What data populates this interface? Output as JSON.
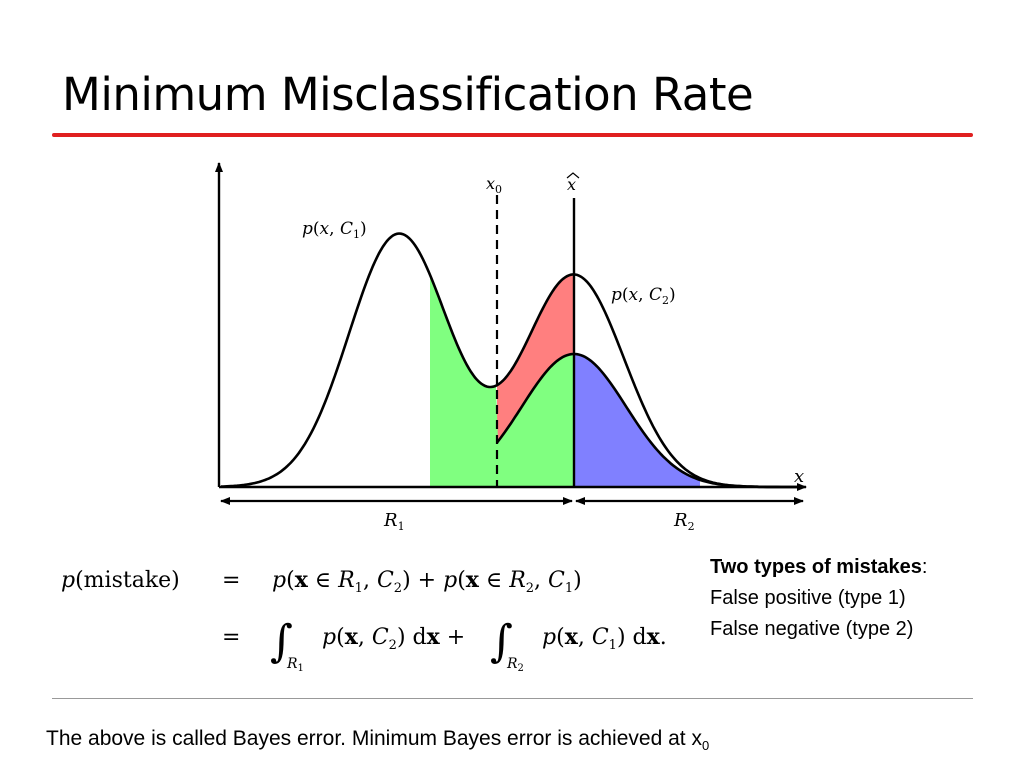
{
  "title": "Minimum Misclassification Rate",
  "figure": {
    "axis_x_label": "x",
    "x0_label": "x0",
    "xhat_label": "x̂",
    "curve_c1_label": "p(x, C1)",
    "curve_c2_label": "p(x, C2)",
    "region1_label": "R1",
    "region2_label": "R2",
    "colors": {
      "red_area": "#ff7f7f",
      "green_area": "#80ff80",
      "blue_area": "#8080ff"
    }
  },
  "formula": {
    "lhs": "p(mistake)",
    "line1": "p(x ∈ R1, C2) + p(x ∈ R2, C1)",
    "line2": "∫R1 p(x, C2) dx + ∫R2 p(x, C1) dx."
  },
  "mistakes": {
    "heading": "Two types of mistakes",
    "heading_suffix": ":",
    "item1": "False positive (type 1)",
    "item2": "False negative (type 2)"
  },
  "footer": {
    "text": "The above is called  Bayes error.   Minimum Bayes error is achieved at x",
    "subscript": "0"
  }
}
